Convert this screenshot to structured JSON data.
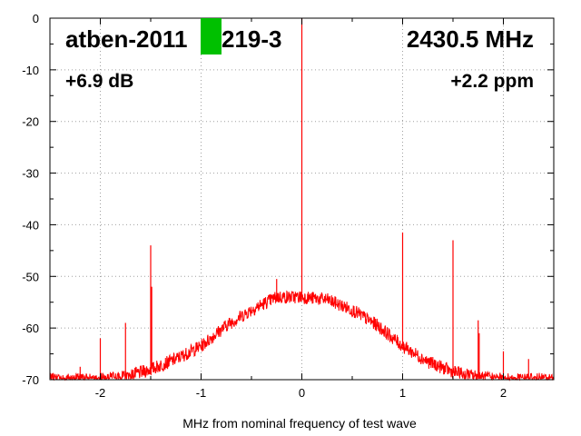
{
  "colors": {
    "trace": "#ff0000",
    "marker": "#00c000",
    "grid": "#a0a0a0"
  },
  "annotations": {
    "device": "atben-2011",
    "device_suffix": "219-3",
    "frequency": "2430.5 MHz",
    "gain": "+6.9 dB",
    "offset": "+2.2 ppm"
  },
  "chart_data": {
    "type": "line",
    "xlabel": "MHz from nominal frequency of test wave",
    "ylabel": "",
    "xlim": [
      -2.5,
      2.5
    ],
    "ylim": [
      -70,
      0
    ],
    "grid": true,
    "x_ticks": [
      -2,
      -1,
      0,
      1,
      2
    ],
    "y_ticks": [
      0,
      -10,
      -20,
      -30,
      -40,
      -50,
      -60,
      -70
    ],
    "series": [
      {
        "x": [
          -2.5,
          -2.25,
          -2.0,
          -1.75,
          -1.5,
          -1.25,
          -1.0,
          -0.75,
          -0.5,
          -0.25,
          0.0,
          0.25,
          0.5,
          0.75,
          1.0,
          1.25,
          1.5,
          1.75,
          2.0,
          2.25,
          2.5
        ],
        "values": [
          -70,
          -70,
          -70,
          -69.5,
          -68,
          -66,
          -63.5,
          -59.5,
          -56.5,
          -54,
          -54,
          -54.5,
          -56.5,
          -59.5,
          -63.5,
          -66.5,
          -68.5,
          -69.5,
          -70,
          -70,
          -70
        ]
      }
    ],
    "spurs": [
      {
        "x": -2.2,
        "y": -67.5
      },
      {
        "x": -2.0,
        "y": -62
      },
      {
        "x": -1.75,
        "y": -59
      },
      {
        "x": -1.5,
        "y": -44
      },
      {
        "x": -1.49,
        "y": -52
      },
      {
        "x": -0.25,
        "y": -50.5
      },
      {
        "x": 0.0,
        "y": 0
      },
      {
        "x": 1.0,
        "y": -41.5
      },
      {
        "x": 1.5,
        "y": -43
      },
      {
        "x": 1.75,
        "y": -58.5
      },
      {
        "x": 1.76,
        "y": -61
      },
      {
        "x": 2.0,
        "y": -64.5
      },
      {
        "x": 2.25,
        "y": -66
      }
    ]
  }
}
